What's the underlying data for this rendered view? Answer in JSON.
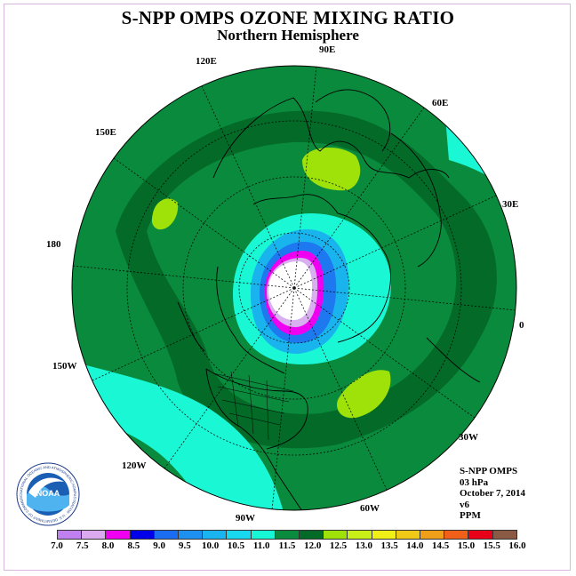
{
  "header": {
    "title": "S-NPP OMPS OZONE MIXING RATIO",
    "subtitle": "Northern Hemisphere"
  },
  "map": {
    "longitude_labels": [
      "90E",
      "60E",
      "30E",
      "0",
      "30W",
      "60W",
      "90W",
      "120W",
      "150W",
      "180",
      "150E",
      "120E"
    ],
    "colors": {
      "background_dark": "#007a2e",
      "band_mid": "#0a8a3c",
      "band_dark": "#036a28",
      "cyan": "#19f7d5",
      "lime": "#9ee20a",
      "blue_light": "#19b4ee",
      "blue": "#1e78f0",
      "magenta": "#f000f0",
      "pink": "#d8b0f0",
      "white": "#ffffff"
    }
  },
  "info_box": {
    "line1": "S-NPP OMPS",
    "line2": "03 hPa",
    "line3": "October 7, 2014",
    "line4": "v6",
    "line5": "PPM"
  },
  "legend": {
    "ticks": [
      "7.0",
      "7.5",
      "8.0",
      "8.5",
      "9.0",
      "9.5",
      "10.0",
      "10.5",
      "11.0",
      "11.5",
      "12.0",
      "12.5",
      "13.0",
      "13.5",
      "14.0",
      "14.5",
      "15.0",
      "15.5",
      "16.0"
    ],
    "colors": [
      "#c080f0",
      "#dcaaf0",
      "#f000f0",
      "#0000e8",
      "#1a6cf0",
      "#1e90f0",
      "#1ab4f0",
      "#18d8f0",
      "#18f7d5",
      "#0a8a3c",
      "#036a28",
      "#9ee20a",
      "#c8f018",
      "#f0f018",
      "#f0c818",
      "#f0a018",
      "#f06018",
      "#e80018",
      "#8a5a44"
    ]
  },
  "logo": {
    "text": "NOAA",
    "ring_text": "NATIONAL OCEANIC AND ATMOSPHERIC ADMINISTRATION · U.S. DEPARTMENT OF COMMERCE"
  }
}
